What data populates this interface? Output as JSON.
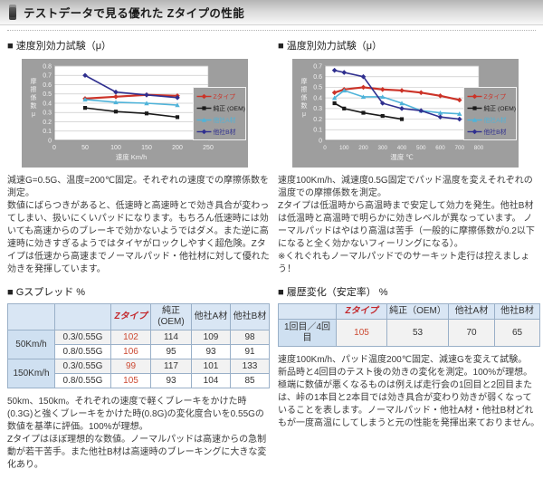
{
  "page_title": "テストデータで見る優れた Zタイプの性能",
  "colors": {
    "accent_red": "#c3272b",
    "value_red": "#cc4a33",
    "chart_panel_gray": "#9e9e9e",
    "table_header_blue": "#d9e6f4"
  },
  "columns": {
    "left": {
      "chart_heading": "■ 速度別効力試験（μ）",
      "desc": "減速G=0.5G、温度=200℃固定。それぞれの速度での摩擦係数を測定。\n数値にばらつきがあると、低速時と高速時とで効き具合が変わってしまい、扱いにくいパッドになります。もちろん低速時には効いても高速からのブレーキで効かないようではダメ。また逆に高速時に効きすぎるようではタイヤがロックしやすく超危険。Zタイプは低速から高速までノーマルパッド・他社材に対して優れた効きを発揮しています。",
      "table_heading": "■ Gスプレッド %",
      "table": {
        "col_headers": [
          "Zタイプ",
          "純正\n(OEM)",
          "他社A材",
          "他社B材"
        ],
        "row_groups": [
          {
            "label": "50Km/h",
            "rows": [
              {
                "cond": "0.3/0.55G",
                "values": [
                  "102",
                  "114",
                  "109",
                  "98"
                ]
              },
              {
                "cond": "0.8/0.55G",
                "values": [
                  "106",
                  "95",
                  "93",
                  "91"
                ]
              }
            ]
          },
          {
            "label": "150Km/h",
            "rows": [
              {
                "cond": "0.3/0.55G",
                "values": [
                  "99",
                  "117",
                  "101",
                  "133"
                ]
              },
              {
                "cond": "0.8/0.55G",
                "values": [
                  "105",
                  "93",
                  "104",
                  "85"
                ]
              }
            ]
          }
        ]
      },
      "note": "50km、150km。それぞれの速度で軽くブレーキをかけた時(0.3G)と強くブレーキをかけた時(0.8G)の変化度合いを0.55Gの数値を基準に評価。100%が理想。\nZタイプはほぼ理想的な数値。ノーマルパッドは高速からの急制動が若干苦手。また他社B材は高速時のブレーキングに大きな変化あり。"
    },
    "right": {
      "chart_heading": "■ 温度別効力試験（μ）",
      "desc": "速度100Km/h、減速度0.5G固定でパッド温度を変えそれぞれの温度での摩擦係数を測定。\nZタイプは低温時から高温時まで安定して効力を発生。他社B材は低温時と高温時で明らかに効きレベルが異なっています。 ノーマルパッドはやはり高温は苦手（一般的に摩擦係数が0.2以下になると全く効かないフィーリングになる）。\n※くれぐれもノーマルパッドでのサーキット走行は控えましょう！",
      "table_heading": "■ 履歴変化（安定率） %",
      "table": {
        "col_headers": [
          "Zタイプ",
          "純正（OEM）",
          "他社A材",
          "他社B材"
        ],
        "rows": [
          {
            "label": "1回目／4回目",
            "values": [
              "105",
              "53",
              "70",
              "65"
            ]
          }
        ]
      },
      "note": "速度100Km/h、パッド温度200℃固定、減速Gを変えて試験。\n新品時と4回目のテスト後の効きの変化を測定。100%が理想。\n極端に数値が悪くなるものは例えば走行会の1回目と2回目または、峠の1本目と2本目では効き具合が変わり効きが弱くなっていることを表します。ノーマルパッド・他社A材・他社B材どれもが一度高温にしてしまうと元の性能を発揮出来ておりません。"
    }
  },
  "chart_data": [
    {
      "type": "line",
      "title": "速度別効力試験（μ）",
      "xlabel": "速度 Km/h",
      "ylabel": "摩擦係数 μ",
      "xlim": [
        0,
        250
      ],
      "ylim": [
        0,
        0.8
      ],
      "xticks": [
        0,
        50,
        100,
        150,
        200,
        250
      ],
      "ytick_step": 0.1,
      "grid": true,
      "legend_position": "right",
      "series": [
        {
          "name": "Zタイプ",
          "color": "#cc3328",
          "marker": "diamond",
          "x": [
            50,
            100,
            150,
            200
          ],
          "values": [
            0.45,
            0.47,
            0.49,
            0.48
          ]
        },
        {
          "name": "純正 (OEM)",
          "color": "#1a1a1a",
          "marker": "square",
          "x": [
            50,
            100,
            150,
            200
          ],
          "values": [
            0.35,
            0.31,
            0.29,
            0.25
          ]
        },
        {
          "name": "他社A材",
          "color": "#4fb3d9",
          "marker": "triangle",
          "x": [
            50,
            100,
            150,
            200
          ],
          "values": [
            0.44,
            0.41,
            0.4,
            0.38
          ]
        },
        {
          "name": "他社B材",
          "color": "#2f2f8f",
          "marker": "diamond",
          "x": [
            50,
            100,
            150,
            200
          ],
          "values": [
            0.7,
            0.52,
            0.49,
            0.46
          ]
        }
      ]
    },
    {
      "type": "line",
      "title": "温度別効力試験（μ）",
      "xlabel": "温度 ℃",
      "ylabel": "摩擦係数 μ",
      "xlim": [
        0,
        800
      ],
      "ylim": [
        0,
        0.7
      ],
      "xticks": [
        0,
        100,
        200,
        300,
        400,
        500,
        600,
        700,
        800
      ],
      "ytick_step": 0.1,
      "grid": true,
      "legend_position": "right",
      "series": [
        {
          "name": "Zタイプ",
          "color": "#cc3328",
          "marker": "diamond",
          "x": [
            50,
            100,
            200,
            300,
            400,
            500,
            600,
            700
          ],
          "values": [
            0.45,
            0.48,
            0.5,
            0.48,
            0.47,
            0.45,
            0.42,
            0.38
          ]
        },
        {
          "name": "純正 (OEM)",
          "color": "#1a1a1a",
          "marker": "square",
          "x": [
            50,
            100,
            200,
            300,
            400
          ],
          "values": [
            0.35,
            0.3,
            0.26,
            0.23,
            0.2
          ]
        },
        {
          "name": "他社A材",
          "color": "#4fb3d9",
          "marker": "triangle",
          "x": [
            50,
            100,
            200,
            300,
            400,
            500,
            600,
            700
          ],
          "values": [
            0.4,
            0.47,
            0.41,
            0.41,
            0.35,
            0.28,
            0.26,
            0.25
          ]
        },
        {
          "name": "他社B材",
          "color": "#2f2f8f",
          "marker": "diamond",
          "x": [
            50,
            100,
            200,
            300,
            400,
            500,
            600,
            700
          ],
          "values": [
            0.66,
            0.64,
            0.6,
            0.35,
            0.3,
            0.28,
            0.22,
            0.2
          ]
        }
      ]
    }
  ]
}
